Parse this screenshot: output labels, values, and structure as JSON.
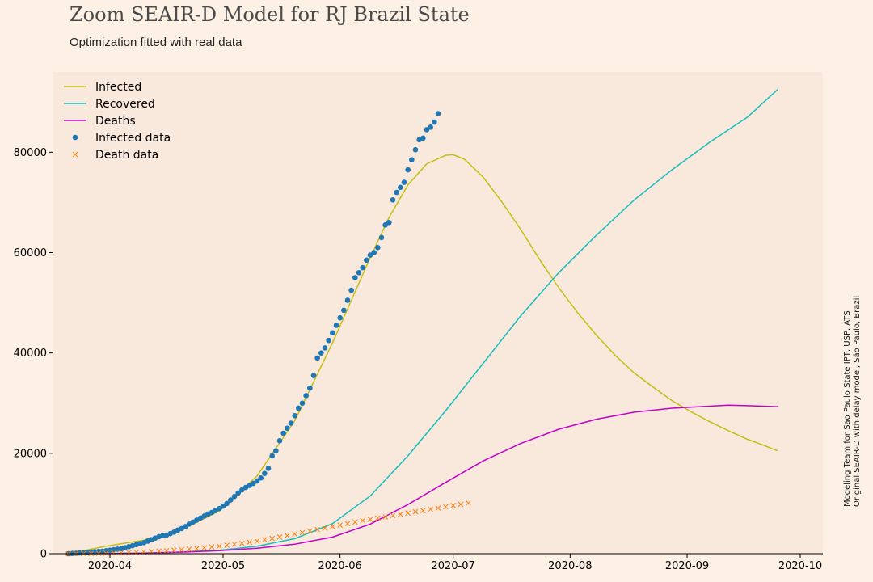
{
  "colors": {
    "page_bg": "#fdf0e5",
    "plot_bg": "#f9e8dc",
    "infected": "#c3bf13",
    "recovered": "#17bdbc",
    "deaths": "#c700c7",
    "infected_data": "#1f77b4",
    "death_data": "#ff7f0e"
  },
  "credit": {
    "line1": "Modeling Team for Sao Paulo State IPT, USP, ATS",
    "line2": "Original SEAIR-D with delay model, São Paulo, Brazil"
  },
  "chart_data": {
    "type": "line",
    "title": "Zoom SEAIR-D Model for RJ Brazil State",
    "subtitle": "Optimization fitted with real data",
    "xlabel": "",
    "ylabel": "",
    "x_start_date": "2020-03-21",
    "xlim_days": [
      -4,
      200
    ],
    "ylim": [
      0,
      96000
    ],
    "y_ticks": [
      0,
      20000,
      40000,
      60000,
      80000
    ],
    "x_ticks": [
      {
        "label": "2020-04",
        "day": 11
      },
      {
        "label": "2020-05",
        "day": 41
      },
      {
        "label": "2020-06",
        "day": 72
      },
      {
        "label": "2020-07",
        "day": 102
      },
      {
        "label": "2020-08",
        "day": 133
      },
      {
        "label": "2020-09",
        "day": 164
      },
      {
        "label": "2020-10",
        "day": 194
      }
    ],
    "legend_position": "top-left",
    "series": [
      {
        "name": "Infected",
        "kind": "line",
        "color_key": "infected",
        "points": [
          [
            0,
            0
          ],
          [
            10,
            1500
          ],
          [
            20,
            2700
          ],
          [
            30,
            4800
          ],
          [
            40,
            8500
          ],
          [
            50,
            15500
          ],
          [
            60,
            26500
          ],
          [
            70,
            42000
          ],
          [
            75,
            50500
          ],
          [
            80,
            59000
          ],
          [
            85,
            67000
          ],
          [
            90,
            73500
          ],
          [
            95,
            77700
          ],
          [
            100,
            79400
          ],
          [
            102,
            79500
          ],
          [
            105,
            78600
          ],
          [
            110,
            75000
          ],
          [
            115,
            70000
          ],
          [
            120,
            64500
          ],
          [
            125,
            58500
          ],
          [
            130,
            53000
          ],
          [
            135,
            48000
          ],
          [
            140,
            43500
          ],
          [
            145,
            39500
          ],
          [
            150,
            36000
          ],
          [
            155,
            33200
          ],
          [
            160,
            30500
          ],
          [
            165,
            28300
          ],
          [
            170,
            26300
          ],
          [
            175,
            24500
          ],
          [
            180,
            22800
          ],
          [
            184,
            21700
          ],
          [
            188,
            20500
          ]
        ]
      },
      {
        "name": "Recovered",
        "kind": "line",
        "color_key": "recovered",
        "points": [
          [
            0,
            0
          ],
          [
            10,
            50
          ],
          [
            20,
            150
          ],
          [
            30,
            350
          ],
          [
            40,
            700
          ],
          [
            50,
            1500
          ],
          [
            60,
            3000
          ],
          [
            70,
            6000
          ],
          [
            80,
            11500
          ],
          [
            90,
            19500
          ],
          [
            100,
            28500
          ],
          [
            110,
            38000
          ],
          [
            120,
            47500
          ],
          [
            130,
            56000
          ],
          [
            140,
            63500
          ],
          [
            150,
            70500
          ],
          [
            160,
            76500
          ],
          [
            170,
            82000
          ],
          [
            180,
            87000
          ],
          [
            188,
            92500
          ]
        ]
      },
      {
        "name": "Deaths",
        "kind": "line",
        "color_key": "deaths",
        "points": [
          [
            0,
            0
          ],
          [
            10,
            20
          ],
          [
            20,
            100
          ],
          [
            30,
            300
          ],
          [
            40,
            600
          ],
          [
            50,
            1100
          ],
          [
            60,
            1900
          ],
          [
            70,
            3300
          ],
          [
            80,
            5900
          ],
          [
            90,
            9800
          ],
          [
            100,
            14200
          ],
          [
            110,
            18500
          ],
          [
            120,
            22000
          ],
          [
            130,
            24800
          ],
          [
            140,
            26800
          ],
          [
            150,
            28200
          ],
          [
            160,
            29000
          ],
          [
            170,
            29400
          ],
          [
            175,
            29600
          ],
          [
            180,
            29500
          ],
          [
            188,
            29300
          ]
        ]
      },
      {
        "name": "Infected data",
        "kind": "scatter",
        "color_key": "infected_data",
        "points": [
          [
            0,
            0
          ],
          [
            1,
            50
          ],
          [
            2,
            100
          ],
          [
            3,
            150
          ],
          [
            4,
            200
          ],
          [
            5,
            300
          ],
          [
            6,
            350
          ],
          [
            7,
            400
          ],
          [
            8,
            450
          ],
          [
            9,
            500
          ],
          [
            10,
            600
          ],
          [
            11,
            700
          ],
          [
            12,
            800
          ],
          [
            13,
            900
          ],
          [
            14,
            1000
          ],
          [
            15,
            1200
          ],
          [
            16,
            1400
          ],
          [
            17,
            1600
          ],
          [
            18,
            1800
          ],
          [
            19,
            2000
          ],
          [
            20,
            2200
          ],
          [
            21,
            2500
          ],
          [
            22,
            2800
          ],
          [
            23,
            3100
          ],
          [
            24,
            3400
          ],
          [
            25,
            3600
          ],
          [
            26,
            3700
          ],
          [
            27,
            4000
          ],
          [
            28,
            4300
          ],
          [
            29,
            4700
          ],
          [
            30,
            5000
          ],
          [
            31,
            5400
          ],
          [
            32,
            5900
          ],
          [
            33,
            6300
          ],
          [
            34,
            6700
          ],
          [
            35,
            7100
          ],
          [
            36,
            7500
          ],
          [
            37,
            7900
          ],
          [
            38,
            8200
          ],
          [
            39,
            8600
          ],
          [
            40,
            9000
          ],
          [
            41,
            9500
          ],
          [
            42,
            10000
          ],
          [
            43,
            10700
          ],
          [
            44,
            11400
          ],
          [
            45,
            12100
          ],
          [
            46,
            12700
          ],
          [
            47,
            13200
          ],
          [
            48,
            13600
          ],
          [
            49,
            14000
          ],
          [
            50,
            14500
          ],
          [
            51,
            15100
          ],
          [
            52,
            16000
          ],
          [
            53,
            17000
          ],
          [
            54,
            19500
          ],
          [
            55,
            20500
          ],
          [
            56,
            22500
          ],
          [
            57,
            24000
          ],
          [
            58,
            25000
          ],
          [
            59,
            26000
          ],
          [
            60,
            27500
          ],
          [
            61,
            29000
          ],
          [
            62,
            30000
          ],
          [
            63,
            31500
          ],
          [
            64,
            33000
          ],
          [
            65,
            35500
          ],
          [
            66,
            39000
          ],
          [
            67,
            40000
          ],
          [
            68,
            41000
          ],
          [
            69,
            42500
          ],
          [
            70,
            44000
          ],
          [
            71,
            45500
          ],
          [
            72,
            47000
          ],
          [
            73,
            48500
          ],
          [
            74,
            50500
          ],
          [
            75,
            52500
          ],
          [
            76,
            55000
          ],
          [
            77,
            56000
          ],
          [
            78,
            57000
          ],
          [
            79,
            58500
          ],
          [
            80,
            59500
          ],
          [
            81,
            60000
          ],
          [
            82,
            61000
          ],
          [
            83,
            63000
          ],
          [
            84,
            65500
          ],
          [
            85,
            66000
          ],
          [
            86,
            70500
          ],
          [
            87,
            72000
          ],
          [
            88,
            73000
          ],
          [
            89,
            74000
          ],
          [
            90,
            76500
          ],
          [
            91,
            78500
          ],
          [
            92,
            80500
          ],
          [
            93,
            82500
          ],
          [
            94,
            82800
          ],
          [
            95,
            84500
          ],
          [
            96,
            85000
          ],
          [
            97,
            86000
          ],
          [
            98,
            87700
          ]
        ]
      },
      {
        "name": "Death data",
        "kind": "cross",
        "color_key": "death_data",
        "points": [
          [
            0,
            0
          ],
          [
            2,
            10
          ],
          [
            4,
            25
          ],
          [
            6,
            45
          ],
          [
            8,
            70
          ],
          [
            10,
            100
          ],
          [
            12,
            140
          ],
          [
            14,
            180
          ],
          [
            16,
            230
          ],
          [
            18,
            290
          ],
          [
            20,
            350
          ],
          [
            22,
            420
          ],
          [
            24,
            500
          ],
          [
            26,
            580
          ],
          [
            28,
            680
          ],
          [
            30,
            790
          ],
          [
            32,
            900
          ],
          [
            34,
            1030
          ],
          [
            36,
            1180
          ],
          [
            38,
            1330
          ],
          [
            40,
            1500
          ],
          [
            42,
            1680
          ],
          [
            44,
            1880
          ],
          [
            46,
            2080
          ],
          [
            48,
            2300
          ],
          [
            50,
            2520
          ],
          [
            52,
            2780
          ],
          [
            54,
            3040
          ],
          [
            56,
            3320
          ],
          [
            58,
            3600
          ],
          [
            60,
            3900
          ],
          [
            62,
            4200
          ],
          [
            64,
            4500
          ],
          [
            66,
            4800
          ],
          [
            68,
            5100
          ],
          [
            70,
            5400
          ],
          [
            72,
            5700
          ],
          [
            74,
            6000
          ],
          [
            76,
            6300
          ],
          [
            78,
            6600
          ],
          [
            80,
            6850
          ],
          [
            82,
            7100
          ],
          [
            84,
            7350
          ],
          [
            86,
            7600
          ],
          [
            88,
            7850
          ],
          [
            90,
            8100
          ],
          [
            92,
            8350
          ],
          [
            94,
            8600
          ],
          [
            96,
            8850
          ],
          [
            98,
            9100
          ],
          [
            100,
            9350
          ],
          [
            102,
            9600
          ],
          [
            104,
            9850
          ],
          [
            106,
            10100
          ]
        ]
      }
    ]
  }
}
